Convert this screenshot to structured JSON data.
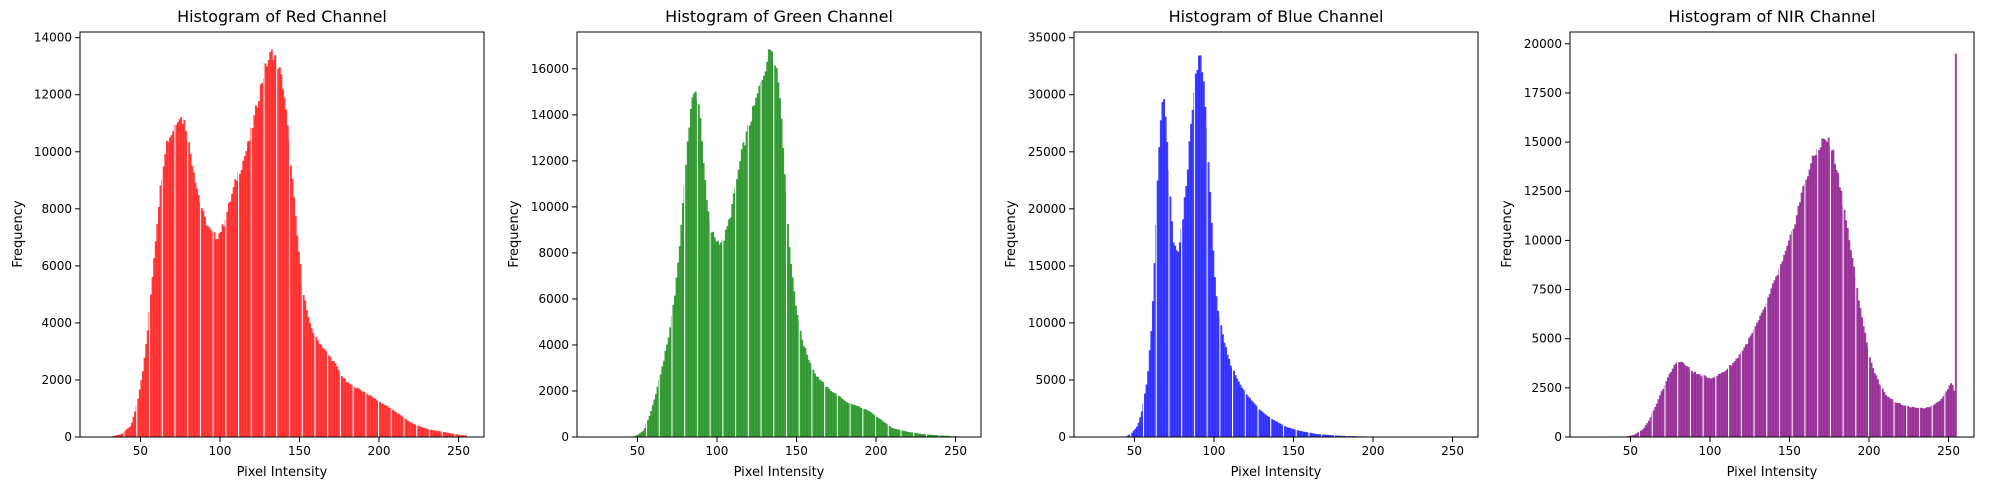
{
  "chart_data": [
    {
      "type": "bar",
      "title": "Histogram of Red Channel",
      "xlabel": "Pixel Intensity",
      "ylabel": "Frequency",
      "color": "#ff0000",
      "xlim": [
        12,
        266
      ],
      "ylim": [
        0,
        14200
      ],
      "xticks": [
        50,
        100,
        150,
        200,
        250
      ],
      "yticks": [
        0,
        2000,
        4000,
        6000,
        8000,
        10000,
        12000,
        14000
      ],
      "ytick_labels": [
        "0",
        "2000",
        "4000",
        "6000",
        "8000",
        "10000",
        "12000",
        "14000"
      ],
      "profile": [
        [
          30,
          0
        ],
        [
          38,
          100
        ],
        [
          44,
          400
        ],
        [
          48,
          1200
        ],
        [
          52,
          2500
        ],
        [
          55,
          4000
        ],
        [
          58,
          6000
        ],
        [
          62,
          8500
        ],
        [
          66,
          10300
        ],
        [
          70,
          10700
        ],
        [
          74,
          11300
        ],
        [
          78,
          11000
        ],
        [
          82,
          9800
        ],
        [
          86,
          8600
        ],
        [
          90,
          7700
        ],
        [
          94,
          7200
        ],
        [
          98,
          7000
        ],
        [
          102,
          7400
        ],
        [
          106,
          8200
        ],
        [
          110,
          9000
        ],
        [
          114,
          9600
        ],
        [
          118,
          10300
        ],
        [
          122,
          11300
        ],
        [
          126,
          12400
        ],
        [
          130,
          13200
        ],
        [
          133,
          13500
        ],
        [
          136,
          13200
        ],
        [
          140,
          12200
        ],
        [
          144,
          10000
        ],
        [
          148,
          7300
        ],
        [
          152,
          5200
        ],
        [
          156,
          4000
        ],
        [
          160,
          3500
        ],
        [
          164,
          3200
        ],
        [
          168,
          2900
        ],
        [
          172,
          2600
        ],
        [
          176,
          2200
        ],
        [
          180,
          1900
        ],
        [
          190,
          1600
        ],
        [
          200,
          1250
        ],
        [
          210,
          900
        ],
        [
          220,
          500
        ],
        [
          230,
          280
        ],
        [
          240,
          180
        ],
        [
          250,
          80
        ],
        [
          256,
          40
        ]
      ],
      "spikes": []
    },
    {
      "type": "bar",
      "title": "Histogram of Green Channel",
      "xlabel": "Pixel Intensity",
      "ylabel": "Frequency",
      "color": "#008000",
      "xlim": [
        12,
        266
      ],
      "ylim": [
        0,
        17600
      ],
      "xticks": [
        50,
        100,
        150,
        200,
        250
      ],
      "yticks": [
        0,
        2000,
        4000,
        6000,
        8000,
        10000,
        12000,
        14000,
        16000
      ],
      "ytick_labels": [
        "0",
        "2000",
        "4000",
        "6000",
        "8000",
        "10000",
        "12000",
        "14000",
        "16000"
      ],
      "profile": [
        [
          45,
          0
        ],
        [
          50,
          80
        ],
        [
          54,
          300
        ],
        [
          58,
          1000
        ],
        [
          62,
          2000
        ],
        [
          66,
          3200
        ],
        [
          70,
          4500
        ],
        [
          74,
          6500
        ],
        [
          78,
          9500
        ],
        [
          81,
          12500
        ],
        [
          84,
          14500
        ],
        [
          86,
          15000
        ],
        [
          88,
          14800
        ],
        [
          90,
          13500
        ],
        [
          93,
          10500
        ],
        [
          96,
          9000
        ],
        [
          100,
          8500
        ],
        [
          104,
          8500
        ],
        [
          108,
          9500
        ],
        [
          112,
          11000
        ],
        [
          116,
          12500
        ],
        [
          120,
          13500
        ],
        [
          124,
          14500
        ],
        [
          128,
          15500
        ],
        [
          132,
          16500
        ],
        [
          134,
          17000
        ],
        [
          137,
          16300
        ],
        [
          140,
          14500
        ],
        [
          143,
          11000
        ],
        [
          146,
          7800
        ],
        [
          150,
          5500
        ],
        [
          154,
          4100
        ],
        [
          158,
          3300
        ],
        [
          162,
          2700
        ],
        [
          166,
          2400
        ],
        [
          170,
          2100
        ],
        [
          176,
          1800
        ],
        [
          182,
          1500
        ],
        [
          190,
          1300
        ],
        [
          196,
          1100
        ],
        [
          202,
          800
        ],
        [
          210,
          400
        ],
        [
          220,
          220
        ],
        [
          230,
          120
        ],
        [
          240,
          70
        ],
        [
          250,
          30
        ],
        [
          255,
          10
        ]
      ],
      "spikes": []
    },
    {
      "type": "bar",
      "title": "Histogram of Blue Channel",
      "xlabel": "Pixel Intensity",
      "ylabel": "Frequency",
      "color": "#0000ff",
      "xlim": [
        12,
        266
      ],
      "ylim": [
        0,
        35500
      ],
      "xticks": [
        50,
        100,
        150,
        200,
        250
      ],
      "yticks": [
        0,
        5000,
        10000,
        15000,
        20000,
        25000,
        30000,
        35000
      ],
      "ytick_labels": [
        "0",
        "5000",
        "10000",
        "15000",
        "20000",
        "25000",
        "30000",
        "35000"
      ],
      "profile": [
        [
          44,
          0
        ],
        [
          48,
          300
        ],
        [
          52,
          1000
        ],
        [
          55,
          2500
        ],
        [
          58,
          5000
        ],
        [
          61,
          10000
        ],
        [
          63,
          17000
        ],
        [
          65,
          24000
        ],
        [
          67,
          29000
        ],
        [
          68,
          30200
        ],
        [
          70,
          27000
        ],
        [
          72,
          22000
        ],
        [
          74,
          17500
        ],
        [
          76,
          16200
        ],
        [
          78,
          16500
        ],
        [
          80,
          18500
        ],
        [
          83,
          23000
        ],
        [
          86,
          28000
        ],
        [
          89,
          32000
        ],
        [
          91,
          33500
        ],
        [
          93,
          32000
        ],
        [
          96,
          26000
        ],
        [
          99,
          17000
        ],
        [
          102,
          11500
        ],
        [
          106,
          8500
        ],
        [
          110,
          6500
        ],
        [
          115,
          5000
        ],
        [
          120,
          3800
        ],
        [
          128,
          2500
        ],
        [
          135,
          1700
        ],
        [
          145,
          900
        ],
        [
          155,
          500
        ],
        [
          165,
          250
        ],
        [
          180,
          100
        ],
        [
          200,
          30
        ],
        [
          220,
          5
        ],
        [
          255,
          0
        ]
      ],
      "spikes": []
    },
    {
      "type": "bar",
      "title": "Histogram of NIR Channel",
      "xlabel": "Pixel Intensity",
      "ylabel": "Frequency",
      "color": "#800080",
      "xlim": [
        12,
        266
      ],
      "ylim": [
        0,
        20600
      ],
      "xticks": [
        50,
        100,
        150,
        200,
        250
      ],
      "yticks": [
        0,
        2500,
        5000,
        7500,
        10000,
        12500,
        15000,
        17500,
        20000
      ],
      "ytick_labels": [
        "0",
        "2500",
        "5000",
        "7500",
        "10000",
        "12500",
        "15000",
        "17500",
        "20000"
      ],
      "profile": [
        [
          45,
          0
        ],
        [
          52,
          100
        ],
        [
          58,
          400
        ],
        [
          62,
          900
        ],
        [
          66,
          1600
        ],
        [
          70,
          2400
        ],
        [
          74,
          3100
        ],
        [
          78,
          3700
        ],
        [
          80,
          3900
        ],
        [
          84,
          3700
        ],
        [
          88,
          3400
        ],
        [
          92,
          3200
        ],
        [
          96,
          3100
        ],
        [
          100,
          3000
        ],
        [
          104,
          3100
        ],
        [
          110,
          3400
        ],
        [
          116,
          3900
        ],
        [
          122,
          4600
        ],
        [
          128,
          5500
        ],
        [
          134,
          6500
        ],
        [
          140,
          7800
        ],
        [
          146,
          9000
        ],
        [
          152,
          10500
        ],
        [
          158,
          12500
        ],
        [
          163,
          13800
        ],
        [
          168,
          14700
        ],
        [
          172,
          15200
        ],
        [
          175,
          15000
        ],
        [
          178,
          14300
        ],
        [
          182,
          12700
        ],
        [
          186,
          10800
        ],
        [
          190,
          8800
        ],
        [
          194,
          6800
        ],
        [
          198,
          5000
        ],
        [
          202,
          3600
        ],
        [
          206,
          2800
        ],
        [
          210,
          2200
        ],
        [
          216,
          1800
        ],
        [
          222,
          1600
        ],
        [
          228,
          1500
        ],
        [
          234,
          1450
        ],
        [
          240,
          1600
        ],
        [
          245,
          1900
        ],
        [
          249,
          2400
        ],
        [
          252,
          2800
        ],
        [
          253,
          2600
        ],
        [
          255,
          1500
        ]
      ],
      "spikes": [
        [
          254,
          19500
        ]
      ]
    }
  ]
}
